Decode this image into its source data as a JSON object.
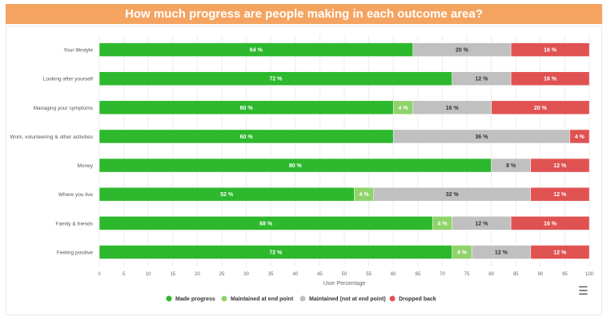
{
  "chart_data": {
    "type": "bar",
    "orientation": "horizontal",
    "stacked": true,
    "title": "How much progress are people making in each outcome area?",
    "xlabel": "User Percentage",
    "xlim": [
      0,
      100
    ],
    "xticks": [
      0,
      5,
      10,
      15,
      20,
      25,
      30,
      35,
      40,
      45,
      50,
      55,
      60,
      65,
      70,
      75,
      80,
      85,
      90,
      95,
      100
    ],
    "grid": true,
    "legend_position": "bottom",
    "categories": [
      "Your lifestyle",
      "Looking after yourself",
      "Managing your symptoms",
      "Work, volunteering & other activities",
      "Money",
      "Where you live",
      "Family & friends",
      "Feeling positive"
    ],
    "series": [
      {
        "name": "Made progress",
        "color": "#2db82d",
        "values": [
          64,
          72,
          60,
          60,
          80,
          52,
          68,
          72
        ]
      },
      {
        "name": "Maintained at end point",
        "color": "#8fd36b",
        "values": [
          0,
          0,
          4,
          0,
          0,
          4,
          4,
          4
        ]
      },
      {
        "name": "Maintained (not at end point)",
        "color": "#c0c0c0",
        "values": [
          20,
          12,
          16,
          36,
          8,
          32,
          12,
          12
        ]
      },
      {
        "name": "Dropped back",
        "color": "#e05252",
        "values": [
          16,
          16,
          20,
          4,
          12,
          12,
          16,
          12
        ]
      }
    ]
  },
  "menu_icon": "hamburger-menu-icon"
}
